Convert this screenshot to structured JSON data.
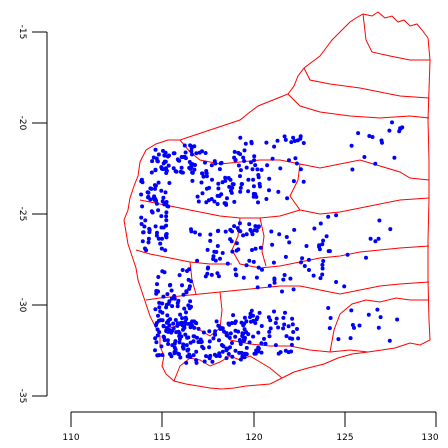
{
  "map": {
    "x_axis": {
      "range": [
        110,
        130
      ],
      "ticks": [
        110,
        115,
        120,
        125,
        130
      ],
      "tick_labels": [
        "110",
        "115",
        "120",
        "125",
        "130"
      ]
    },
    "y_axis": {
      "range": [
        -35,
        -15
      ],
      "ticks": [
        -15,
        -20,
        -25,
        -30,
        -35
      ],
      "tick_labels": [
        "-15",
        "-20",
        "-25",
        "-30",
        "-35"
      ],
      "label_rotation": "vertical"
    },
    "boundary_color": "#ff0000",
    "point_color": "#0000ff",
    "background_color": "#ffffff",
    "axis_color": "#000000",
    "point_clusters": [
      {
        "lon": 115.6,
        "lat": -22.0,
        "spread_lon": 1.2,
        "spread_lat": 0.8,
        "count": 60
      },
      {
        "lon": 114.6,
        "lat": -25.0,
        "spread_lon": 0.8,
        "spread_lat": 2.0,
        "count": 70
      },
      {
        "lon": 115.6,
        "lat": -30.5,
        "spread_lon": 1.0,
        "spread_lat": 2.5,
        "count": 110
      },
      {
        "lon": 117.5,
        "lat": -32.0,
        "spread_lon": 2.2,
        "spread_lat": 1.2,
        "count": 120
      },
      {
        "lon": 120.5,
        "lat": -31.5,
        "spread_lon": 2.0,
        "spread_lat": 1.2,
        "count": 70
      },
      {
        "lon": 118.5,
        "lat": -23.0,
        "spread_lon": 2.0,
        "spread_lat": 1.5,
        "count": 80
      },
      {
        "lon": 121.0,
        "lat": -22.5,
        "spread_lon": 1.8,
        "spread_lat": 1.8,
        "count": 40
      },
      {
        "lon": 118.5,
        "lat": -27.0,
        "spread_lon": 2.0,
        "spread_lat": 1.5,
        "count": 60
      },
      {
        "lon": 122.0,
        "lat": -27.5,
        "spread_lon": 2.0,
        "spread_lat": 1.8,
        "count": 35
      },
      {
        "lon": 125.5,
        "lat": -27.0,
        "spread_lon": 2.0,
        "spread_lat": 2.0,
        "count": 20
      },
      {
        "lon": 126.0,
        "lat": -31.0,
        "spread_lon": 2.0,
        "spread_lat": 1.0,
        "count": 15
      },
      {
        "lon": 126.5,
        "lat": -21.5,
        "spread_lon": 1.5,
        "spread_lat": 1.5,
        "count": 10
      },
      {
        "lon": 127.8,
        "lat": -20.2,
        "spread_lon": 0.5,
        "spread_lat": 0.3,
        "count": 6
      }
    ]
  }
}
